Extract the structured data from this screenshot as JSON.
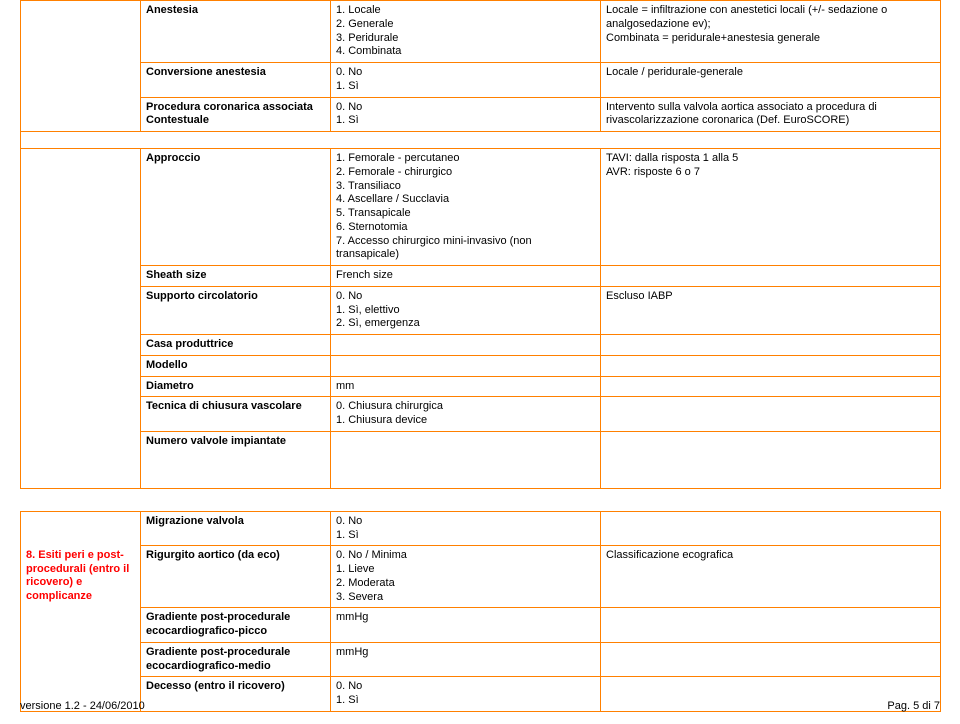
{
  "table_border_color": "#ff8000",
  "section_color": "#ff0000",
  "background_color": "#ffffff",
  "rows1": [
    {
      "field": "Anestesia",
      "values": "1. Locale\n2. Generale\n3. Peridurale\n4. Combinata",
      "notes": "Locale = infiltrazione con anestetici locali (+/- sedazione o analgosedazione ev);\nCombinata = peridurale+anestesia generale"
    },
    {
      "field": "Conversione anestesia",
      "values": "0. No\n1. Sì",
      "notes": "Locale / peridurale-generale"
    },
    {
      "field": "Procedura coronarica associata Contestuale",
      "values": "0. No\n1. Sì",
      "notes": "Intervento sulla valvola aortica associato a procedura di rivascolarizzazione coronarica (Def. EuroSCORE)"
    }
  ],
  "rows2": [
    {
      "field": "Approccio",
      "values": "1. Femorale - percutaneo\n2. Femorale - chirurgico\n3. Transiliaco\n4. Ascellare / Succlavia\n5. Transapicale\n6. Sternotomia\n7. Accesso chirurgico mini-invasivo (non transapicale)",
      "notes": "TAVI: dalla risposta 1 alla 5\nAVR: risposte 6 o 7"
    },
    {
      "field": "Sheath size",
      "values": "French size",
      "notes": ""
    },
    {
      "field": "Supporto circolatorio",
      "values": "0. No\n1. Sì, elettivo\n2. Sì, emergenza",
      "notes": "Escluso IABP"
    },
    {
      "field": "Casa produttrice",
      "values": "",
      "notes": ""
    },
    {
      "field": "Modello",
      "values": "",
      "notes": ""
    },
    {
      "field": "Diametro",
      "values": "mm",
      "notes": ""
    },
    {
      "field": "Tecnica di chiusura vascolare",
      "values": "0. Chiusura chirurgica\n1. Chiusura device",
      "notes": ""
    },
    {
      "field": "Numero valvole impiantate",
      "values": "",
      "notes": "",
      "tall": true
    }
  ],
  "section3_label": "8. Esiti peri e post-procedurali (entro il ricovero) e complicanze",
  "rows3": [
    {
      "field": "Migrazione valvola",
      "values": "0. No\n1. Sì",
      "notes": ""
    },
    {
      "field": "Rigurgito aortico (da eco)",
      "values": "0. No / Minima\n1. Lieve\n2. Moderata\n3. Severa",
      "notes": "Classificazione ecografica",
      "section": true
    },
    {
      "field": "Gradiente post-procedurale ecocardiografico-picco",
      "values": "mmHg",
      "notes": ""
    },
    {
      "field": "Gradiente post-procedurale ecocardiografico-medio",
      "values": "mmHg",
      "notes": ""
    },
    {
      "field": "Decesso (entro il ricovero)",
      "values": "0. No\n1. Sì",
      "notes": ""
    }
  ],
  "footer_left": "versione 1.2 - 24/06/2010",
  "footer_right": "Pag. 5 di 7"
}
